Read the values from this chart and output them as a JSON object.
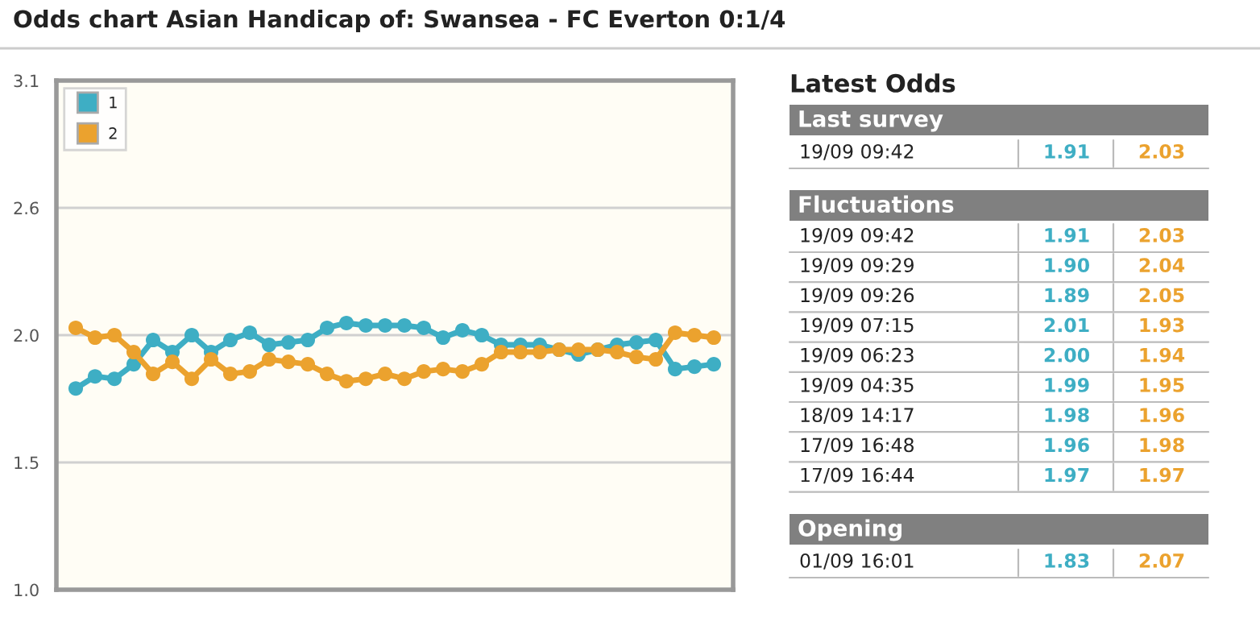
{
  "chart_data": {
    "type": "line",
    "title": "Odds chart Asian Handicap of: Swansea - FC Everton 0:1/4",
    "categories": [
      null,
      null,
      null,
      null,
      null,
      null,
      null,
      null,
      null,
      null,
      null,
      null,
      null,
      null,
      null,
      null,
      null,
      null,
      null,
      null,
      null,
      null,
      null,
      null,
      null,
      null,
      null,
      null,
      null,
      null,
      null,
      null,
      null,
      null
    ],
    "series": [
      {
        "name": "1",
        "color": "#3eaec4",
        "values": [
          1.83,
          1.88,
          1.87,
          1.93,
          2.03,
          1.98,
          2.05,
          1.98,
          2.03,
          2.06,
          2.01,
          2.02,
          2.03,
          2.08,
          2.1,
          2.09,
          2.09,
          2.09,
          2.08,
          2.04,
          2.07,
          2.05,
          2.01,
          2.01,
          2.01,
          1.99,
          1.97,
          1.99,
          2.01,
          2.02,
          2.03,
          1.91,
          1.92,
          1.93
        ]
      },
      {
        "name": "2",
        "color": "#eba22e",
        "values": [
          2.08,
          2.04,
          2.05,
          1.98,
          1.89,
          1.94,
          1.87,
          1.95,
          1.89,
          1.9,
          1.95,
          1.94,
          1.93,
          1.89,
          1.86,
          1.87,
          1.89,
          1.87,
          1.9,
          1.91,
          1.9,
          1.93,
          1.98,
          1.98,
          1.98,
          1.99,
          1.99,
          1.99,
          1.98,
          1.96,
          1.95,
          2.06,
          2.05,
          2.04
        ]
      }
    ],
    "ylim": [
      1.0,
      3.1
    ],
    "yticks": [
      {
        "value": 1.0,
        "label": "1.0"
      },
      {
        "value": 1.525,
        "label": "1.5"
      },
      {
        "value": 2.05,
        "label": "2.0"
      },
      {
        "value": 2.575,
        "label": "2.6"
      },
      {
        "value": 3.1,
        "label": "3.1"
      }
    ],
    "grid": "y",
    "legend": "top left",
    "marker": "circle",
    "line_style": "solid",
    "annotations": [
      "Latest Odds",
      "Last survey",
      "19/09 09:42",
      "1.91",
      "2.03",
      "Fluctuations",
      "19/09 09:42",
      "1.91",
      "2.03",
      "19/09 09:29",
      "1.90",
      "2.04",
      "19/09 09:26",
      "1.89",
      "2.05",
      "19/09 07:15",
      "2.01",
      "1.93",
      "19/09 06:23",
      "2.00",
      "1.94",
      "19/09 04:35",
      "1.99",
      "1.95",
      "18/09 14:17",
      "1.98",
      "1.96",
      "17/09 16:48",
      "1.96",
      "1.98",
      "17/09 16:44",
      "1.97",
      "1.97",
      "Opening",
      "01/09 16:01",
      "1.83",
      "2.07"
    ]
  }
}
